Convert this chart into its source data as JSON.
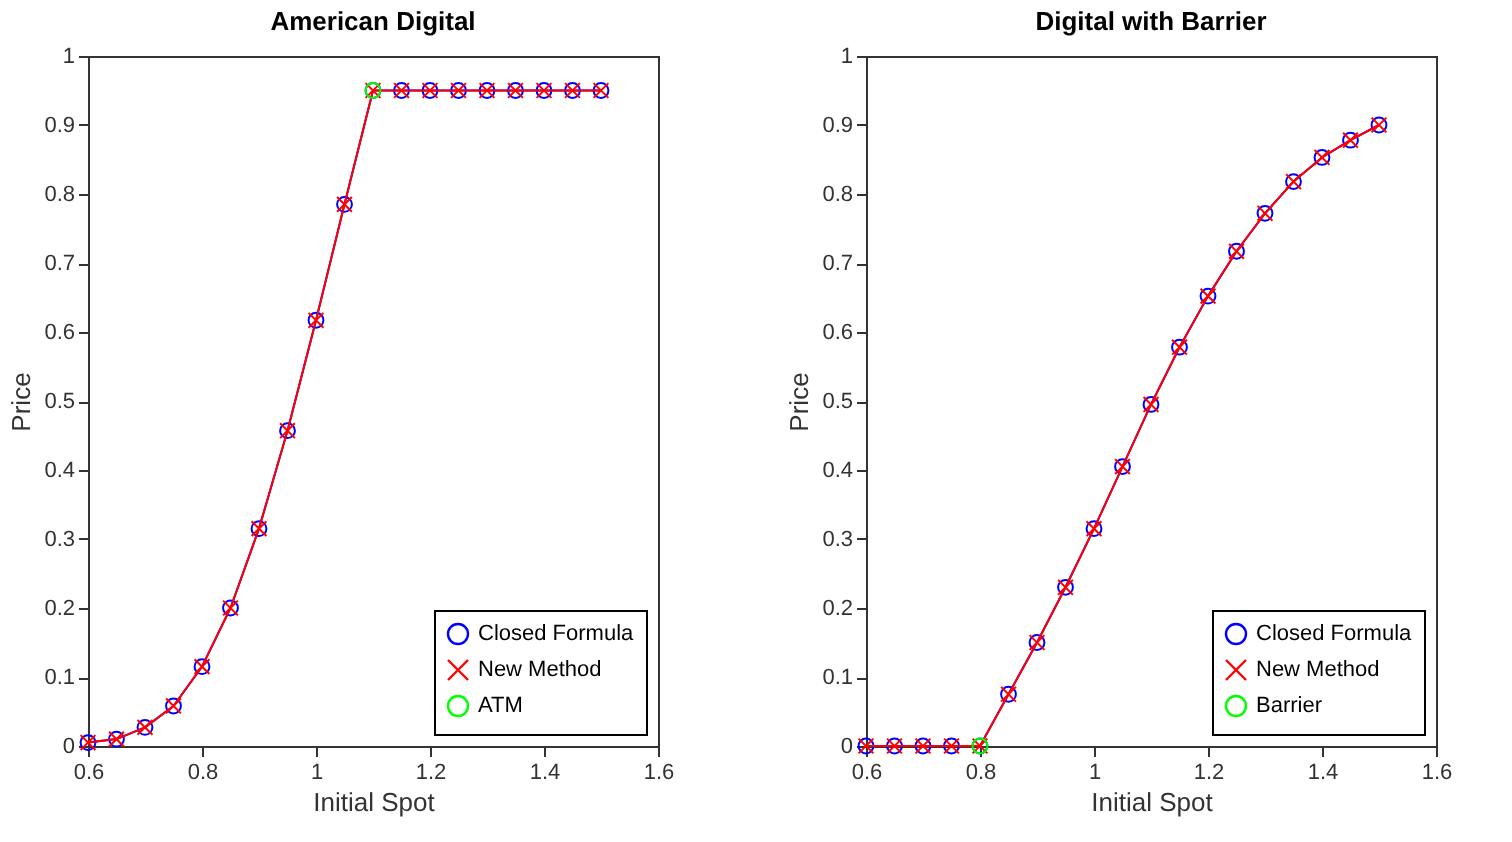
{
  "chart_data": [
    {
      "type": "line",
      "title": "American Digital",
      "xlabel": "Initial Spot",
      "ylabel": "Price",
      "x": [
        0.6,
        0.65,
        0.7,
        0.75,
        0.8,
        0.85,
        0.9,
        0.95,
        1.0,
        1.05,
        1.1,
        1.15,
        1.2,
        1.25,
        1.3,
        1.35,
        1.4,
        1.45,
        1.5
      ],
      "series": [
        {
          "name": "Closed Formula",
          "color": "#0000ff",
          "marker": "circle",
          "values": [
            0.005,
            0.01,
            0.027,
            0.058,
            0.115,
            0.2,
            0.315,
            0.457,
            0.617,
            0.785,
            0.95,
            0.95,
            0.95,
            0.95,
            0.95,
            0.95,
            0.95,
            0.95,
            0.95
          ]
        },
        {
          "name": "New Method",
          "color": "#ff0000",
          "marker": "cross",
          "values": [
            0.005,
            0.01,
            0.027,
            0.058,
            0.115,
            0.2,
            0.315,
            0.457,
            0.617,
            0.785,
            0.95,
            0.95,
            0.95,
            0.95,
            0.95,
            0.95,
            0.95,
            0.95,
            0.95
          ]
        },
        {
          "name": "ATM",
          "type": "scatter",
          "color": "#00ff00",
          "marker": "circle",
          "x": [
            1.1
          ],
          "values": [
            0.95
          ]
        }
      ],
      "xlim": [
        0.6,
        1.6
      ],
      "xticks": [
        0.6,
        0.8,
        1,
        1.2,
        1.4,
        1.6
      ],
      "ylim": [
        0,
        1
      ],
      "yticks": [
        0,
        0.1,
        0.2,
        0.3,
        0.4,
        0.5,
        0.6,
        0.7,
        0.8,
        0.9,
        1
      ],
      "legend": "bottom right"
    },
    {
      "type": "line",
      "title": "Digital with Barrier",
      "xlabel": "Initial Spot",
      "ylabel": "Price",
      "x": [
        0.6,
        0.65,
        0.7,
        0.75,
        0.8,
        0.85,
        0.9,
        0.95,
        1.0,
        1.05,
        1.1,
        1.15,
        1.2,
        1.25,
        1.3,
        1.35,
        1.4,
        1.45,
        1.5
      ],
      "series": [
        {
          "name": "Closed Formula",
          "color": "#0000ff",
          "marker": "circle",
          "values": [
            0,
            0,
            0,
            0,
            0,
            0.075,
            0.15,
            0.23,
            0.315,
            0.405,
            0.495,
            0.578,
            0.652,
            0.717,
            0.772,
            0.818,
            0.853,
            0.878,
            0.9
          ]
        },
        {
          "name": "New Method",
          "color": "#ff0000",
          "marker": "cross",
          "values": [
            0,
            0,
            0,
            0,
            0,
            0.075,
            0.15,
            0.23,
            0.315,
            0.405,
            0.495,
            0.578,
            0.652,
            0.717,
            0.772,
            0.818,
            0.853,
            0.878,
            0.9
          ]
        },
        {
          "name": "Barrier",
          "type": "scatter",
          "color": "#00ff00",
          "marker": "circle",
          "x": [
            0.8
          ],
          "values": [
            0
          ]
        }
      ],
      "xlim": [
        0.6,
        1.6
      ],
      "xticks": [
        0.6,
        0.8,
        1,
        1.2,
        1.4,
        1.6
      ],
      "ylim": [
        0,
        1
      ],
      "yticks": [
        0,
        0.1,
        0.2,
        0.3,
        0.4,
        0.5,
        0.6,
        0.7,
        0.8,
        0.9,
        1
      ],
      "legend": "bottom right"
    }
  ]
}
